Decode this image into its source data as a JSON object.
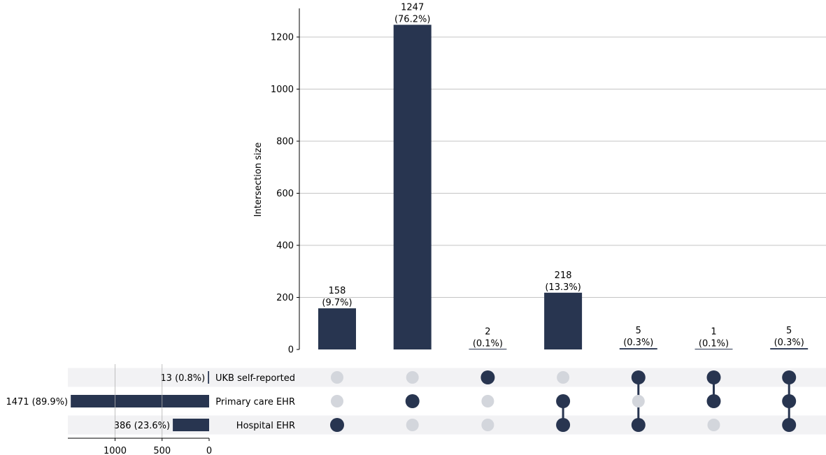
{
  "chart_data": {
    "type": "upset",
    "ylabel": "Intersection size",
    "ylim": [
      0,
      1310
    ],
    "yticks": [
      0,
      200,
      400,
      600,
      800,
      1000,
      1200
    ],
    "grid": true,
    "colors": {
      "bar": "#283550",
      "dot_inactive": "#d3d6dc",
      "row_shade": "#f2f2f4",
      "grid": "#b0b0b0"
    },
    "sets": [
      {
        "name": "UKB self-reported",
        "size": 13,
        "size_label": "13 (0.8%)"
      },
      {
        "name": "Primary care EHR",
        "size": 1471,
        "size_label": "1471 (89.9%)"
      },
      {
        "name": "Hospital EHR",
        "size": 386,
        "size_label": "386 (23.6%)"
      }
    ],
    "set_size_axis": {
      "ticks": [
        1000,
        500,
        0
      ],
      "max": 1500
    },
    "intersections": [
      {
        "value": 158,
        "count_label": "158",
        "pct_label": "(9.7%)",
        "members": [
          false,
          false,
          true
        ]
      },
      {
        "value": 1247,
        "count_label": "1247",
        "pct_label": "(76.2%)",
        "members": [
          false,
          true,
          false
        ]
      },
      {
        "value": 2,
        "count_label": "2",
        "pct_label": "(0.1%)",
        "members": [
          true,
          false,
          false
        ]
      },
      {
        "value": 218,
        "count_label": "218",
        "pct_label": "(13.3%)",
        "members": [
          false,
          true,
          true
        ]
      },
      {
        "value": 5,
        "count_label": "5",
        "pct_label": "(0.3%)",
        "members": [
          true,
          false,
          true
        ]
      },
      {
        "value": 1,
        "count_label": "1",
        "pct_label": "(0.1%)",
        "members": [
          true,
          true,
          false
        ]
      },
      {
        "value": 5,
        "count_label": "5",
        "pct_label": "(0.3%)",
        "members": [
          true,
          true,
          true
        ]
      }
    ]
  }
}
